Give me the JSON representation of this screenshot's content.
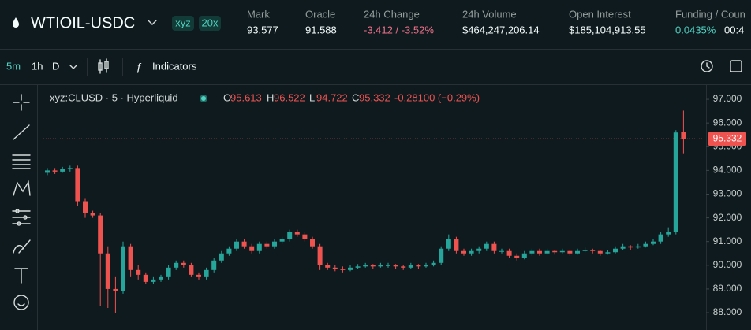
{
  "header": {
    "title": "WTIOIL-USDC",
    "badges": [
      "xyz",
      "20x"
    ],
    "stats": [
      {
        "label": "Mark",
        "value": "93.577"
      },
      {
        "label": "Oracle",
        "value": "91.588"
      },
      {
        "label": "24h Change",
        "value": "-3.412 / -3.52%",
        "color": "#ed7088"
      },
      {
        "label": "24h Volume",
        "value": "$464,247,206.14"
      },
      {
        "label": "Open Interest",
        "value": "$185,104,913.55"
      },
      {
        "label": "Funding / Coun",
        "value": "0.0435%",
        "color": "#50d2c1"
      }
    ],
    "countdown": "00:4"
  },
  "toolbar": {
    "intervals": [
      "5m",
      "1h",
      "D"
    ],
    "indicators": "Indicators"
  },
  "chart_data": {
    "type": "candlestick",
    "symbol": "xyz:CLUSD · 5 · Hyperliquid",
    "legend_labels": [
      "O",
      "H",
      "L",
      "C"
    ],
    "change": "-0.28100 (−0.29%)",
    "up_color": "#26a69a",
    "down_color": "#ef5350",
    "open": [
      93.9,
      94.0,
      93.95,
      94.05,
      94.1,
      92.7,
      92.2,
      92.1,
      90.5,
      89.0,
      88.9,
      90.8,
      89.8,
      89.6,
      89.3,
      89.4,
      89.5,
      89.9,
      90.1,
      90.0,
      89.6,
      89.5,
      89.8,
      90.2,
      90.5,
      90.7,
      91.0,
      90.8,
      90.6,
      90.9,
      90.8,
      91.0,
      91.1,
      91.4,
      91.3,
      91.1,
      90.8,
      90.0,
      89.9,
      89.85,
      89.8,
      89.9,
      89.95,
      90.0,
      89.95,
      90.0,
      90.0,
      89.95,
      89.9,
      90.0,
      89.95,
      90.0,
      90.1,
      90.7,
      91.1,
      90.6,
      90.5,
      90.6,
      90.7,
      90.9,
      90.6,
      90.6,
      90.4,
      90.3,
      90.5,
      90.6,
      90.5,
      90.6,
      90.55,
      90.6,
      90.5,
      90.6,
      90.65,
      90.6,
      90.5,
      90.55,
      90.7,
      90.8,
      90.75,
      90.8,
      90.9,
      91.0,
      91.3,
      91.4,
      95.613
    ],
    "high": [
      94.1,
      94.1,
      94.15,
      94.2,
      94.2,
      92.8,
      92.3,
      92.2,
      90.8,
      89.5,
      91.0,
      90.9,
      90.0,
      89.7,
      89.5,
      89.6,
      90.0,
      90.2,
      90.2,
      90.1,
      89.7,
      89.9,
      90.3,
      90.6,
      90.8,
      91.1,
      91.1,
      90.9,
      91.0,
      91.0,
      91.1,
      91.2,
      91.5,
      91.5,
      91.4,
      91.2,
      90.9,
      90.1,
      90.0,
      89.95,
      90.0,
      90.05,
      90.1,
      90.05,
      90.1,
      90.1,
      90.05,
      90.0,
      90.1,
      90.05,
      90.1,
      90.2,
      90.8,
      91.3,
      91.2,
      90.7,
      90.7,
      90.8,
      91.0,
      91.0,
      90.7,
      90.7,
      90.5,
      90.6,
      90.7,
      90.7,
      90.7,
      90.65,
      90.7,
      90.65,
      90.7,
      90.75,
      90.7,
      90.65,
      90.65,
      90.8,
      90.9,
      90.85,
      90.9,
      91.0,
      91.1,
      91.4,
      91.6,
      95.7,
      96.522
    ],
    "low": [
      93.8,
      93.85,
      93.9,
      93.95,
      92.5,
      92.0,
      92.0,
      88.3,
      88.2,
      88.0,
      88.8,
      89.5,
      89.4,
      89.2,
      89.2,
      89.3,
      89.4,
      89.8,
      89.9,
      89.5,
      89.4,
      89.4,
      89.7,
      90.1,
      90.4,
      90.6,
      90.7,
      90.5,
      90.5,
      90.7,
      90.7,
      90.9,
      91.0,
      91.2,
      91.0,
      90.7,
      89.8,
      89.8,
      89.75,
      89.7,
      89.75,
      89.85,
      89.9,
      89.85,
      89.9,
      89.9,
      89.85,
      89.8,
      89.85,
      89.85,
      89.9,
      89.95,
      90.0,
      90.6,
      90.5,
      90.4,
      90.4,
      90.5,
      90.6,
      90.5,
      90.5,
      90.3,
      90.2,
      90.25,
      90.4,
      90.4,
      90.45,
      90.45,
      90.5,
      90.4,
      90.45,
      90.55,
      90.5,
      90.4,
      90.45,
      90.5,
      90.65,
      90.65,
      90.7,
      90.75,
      90.85,
      90.9,
      91.2,
      91.3,
      94.722
    ],
    "close": [
      94.0,
      93.95,
      94.05,
      94.1,
      92.7,
      92.2,
      92.1,
      90.5,
      89.0,
      88.9,
      90.8,
      89.8,
      89.6,
      89.3,
      89.4,
      89.5,
      89.9,
      90.1,
      90.0,
      89.6,
      89.5,
      89.8,
      90.2,
      90.5,
      90.7,
      91.0,
      90.8,
      90.6,
      90.9,
      90.8,
      91.0,
      91.1,
      91.4,
      91.3,
      91.1,
      90.8,
      90.0,
      89.9,
      89.85,
      89.8,
      89.9,
      89.95,
      90.0,
      89.95,
      90.0,
      90.0,
      89.95,
      89.9,
      90.0,
      89.95,
      90.0,
      90.1,
      90.7,
      91.1,
      90.6,
      90.5,
      90.6,
      90.7,
      90.9,
      90.6,
      90.6,
      90.4,
      90.3,
      90.5,
      90.6,
      90.5,
      90.6,
      90.55,
      90.6,
      90.5,
      90.6,
      90.65,
      90.6,
      90.5,
      90.55,
      90.7,
      90.8,
      90.75,
      90.8,
      90.9,
      91.0,
      91.3,
      91.4,
      95.6,
      95.332
    ],
    "ylim": [
      87.27,
      97.6
    ],
    "yticks": [
      {
        "value": 88,
        "label": "88.000"
      },
      {
        "value": 89,
        "label": "89.000"
      },
      {
        "value": 90,
        "label": "90.000"
      },
      {
        "value": 91,
        "label": "91.000"
      },
      {
        "value": 92,
        "label": "92.000"
      },
      {
        "value": 93,
        "label": "93.000"
      },
      {
        "value": 94,
        "label": "94.000"
      },
      {
        "value": 95,
        "label": "95.000"
      },
      {
        "value": 96,
        "label": "96.000"
      },
      {
        "value": 97,
        "label": "97.000"
      }
    ],
    "grid": false
  }
}
